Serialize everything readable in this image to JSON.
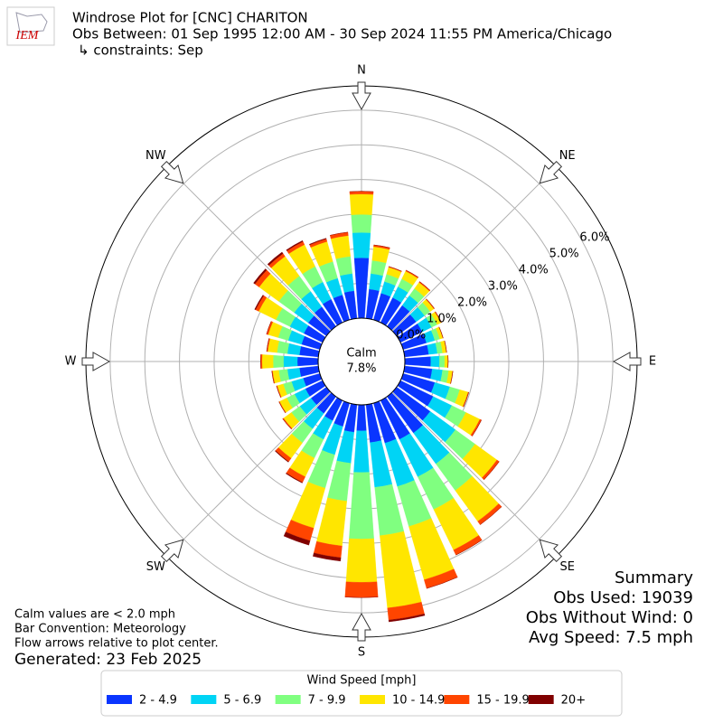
{
  "chart_data": {
    "type": "windrose",
    "title": "Windrose Plot for [CNC] CHARITON",
    "subtitle": "Obs Between: 01 Sep 1995 12:00 AM - 30 Sep 2024 11:55 PM America/Chicago",
    "constraints": "↳ constraints: Sep",
    "logo": "IEM",
    "x": [
      0,
      10,
      20,
      30,
      40,
      50,
      60,
      70,
      80,
      90,
      100,
      110,
      120,
      130,
      140,
      150,
      160,
      170,
      180,
      190,
      200,
      210,
      220,
      230,
      240,
      250,
      260,
      270,
      280,
      290,
      300,
      310,
      320,
      330,
      340,
      350
    ],
    "xlim": [
      0,
      360
    ],
    "xticks": [
      {
        "value": 0,
        "label": "N"
      },
      {
        "value": 45,
        "label": "NE"
      },
      {
        "value": 90,
        "label": "E"
      },
      {
        "value": 135,
        "label": "SE"
      },
      {
        "value": 180,
        "label": "S"
      },
      {
        "value": 225,
        "label": "SW"
      },
      {
        "value": 270,
        "label": "W"
      },
      {
        "value": 315,
        "label": "NW"
      }
    ],
    "ylim": [
      0,
      6.7
    ],
    "yticks": [
      {
        "value": 0,
        "label": "0.0%"
      },
      {
        "value": 1,
        "label": "1.0%"
      },
      {
        "value": 2,
        "label": "2.0%"
      },
      {
        "value": 3,
        "label": "3.0%"
      },
      {
        "value": 4,
        "label": "4.0%"
      },
      {
        "value": 5,
        "label": "5.0%"
      },
      {
        "value": 6,
        "label": "6.0%"
      }
    ],
    "grid": true,
    "calm": {
      "label": "Calm",
      "value": 7.8,
      "value_label": "7.8%"
    },
    "legend_title": "Wind Speed [mph]",
    "series": [
      {
        "name": "2 - 4.9",
        "color": "#0a35ff",
        "values": [
          1.74,
          0.85,
          0.8,
          0.8,
          0.75,
          0.7,
          0.7,
          0.7,
          0.7,
          0.75,
          0.8,
          0.95,
          1.05,
          1.2,
          1.3,
          1.25,
          1.2,
          1.1,
          0.75,
          0.8,
          0.7,
          0.65,
          0.6,
          0.55,
          0.55,
          0.5,
          0.55,
          0.6,
          0.55,
          0.55,
          0.6,
          0.65,
          0.7,
          0.75,
          0.75,
          0.8
        ]
      },
      {
        "name": "5 - 6.9",
        "color": "#00d4f5",
        "values": [
          0.73,
          0.45,
          0.35,
          0.35,
          0.35,
          0.3,
          0.3,
          0.25,
          0.25,
          0.25,
          0.3,
          0.45,
          0.6,
          0.9,
          1.1,
          1.2,
          1.3,
          1.3,
          1.2,
          0.9,
          0.85,
          0.6,
          0.55,
          0.4,
          0.35,
          0.35,
          0.35,
          0.4,
          0.35,
          0.4,
          0.45,
          0.5,
          0.55,
          0.55,
          0.5,
          0.5
        ]
      },
      {
        "name": "7 - 9.9",
        "color": "#80ff80",
        "values": [
          0.52,
          0.38,
          0.22,
          0.25,
          0.25,
          0.2,
          0.18,
          0.15,
          0.15,
          0.15,
          0.18,
          0.3,
          0.45,
          0.7,
          0.95,
          1.05,
          1.2,
          1.4,
          1.92,
          1.1,
          1.0,
          0.6,
          0.5,
          0.3,
          0.25,
          0.25,
          0.25,
          0.3,
          0.3,
          0.3,
          0.45,
          0.55,
          0.55,
          0.5,
          0.5,
          0.5
        ]
      },
      {
        "name": "10 - 14.9",
        "color": "#ffe600",
        "values": [
          0.59,
          0.4,
          0.21,
          0.25,
          0.22,
          0.13,
          0.12,
          0.09,
          0.11,
          0.09,
          0.11,
          0.25,
          0.45,
          0.78,
          1.1,
          1.3,
          1.6,
          2.1,
          1.25,
          1.3,
          1.2,
          0.6,
          0.55,
          0.28,
          0.23,
          0.18,
          0.18,
          0.32,
          0.27,
          0.3,
          0.55,
          0.7,
          0.7,
          0.7,
          0.6,
          0.6
        ]
      },
      {
        "name": "15 - 19.9",
        "color": "#ff4500",
        "values": [
          0.08,
          0.05,
          0.02,
          0.03,
          0.03,
          0.02,
          0.02,
          0.01,
          0.01,
          0.01,
          0.01,
          0.02,
          0.05,
          0.08,
          0.12,
          0.16,
          0.26,
          0.35,
          0.44,
          0.34,
          0.38,
          0.18,
          0.12,
          0.03,
          0.02,
          0.02,
          0.02,
          0.04,
          0.03,
          0.05,
          0.1,
          0.15,
          0.1,
          0.1,
          0.08,
          0.1
        ]
      },
      {
        "name": "20+",
        "color": "#800000",
        "values": [
          0,
          0,
          0,
          0,
          0,
          0,
          0,
          0,
          0,
          0,
          0,
          0,
          0,
          0,
          0,
          0,
          0,
          0.05,
          0,
          0.1,
          0.13,
          0.02,
          0.02,
          0,
          0,
          0,
          0,
          0,
          0,
          0,
          0.03,
          0.05,
          0.05,
          0.03,
          0.02,
          0
        ]
      }
    ],
    "summary": {
      "title": "Summary",
      "lines": [
        "Obs Used: 19039",
        "Obs Without Wind: 0",
        "Avg Speed: 7.5 mph"
      ]
    },
    "notes": [
      "Calm values are < 2.0 mph",
      "Bar Convention: Meteorology",
      "Flow arrows relative to plot center."
    ],
    "generated": "Generated: 23 Feb 2025"
  }
}
